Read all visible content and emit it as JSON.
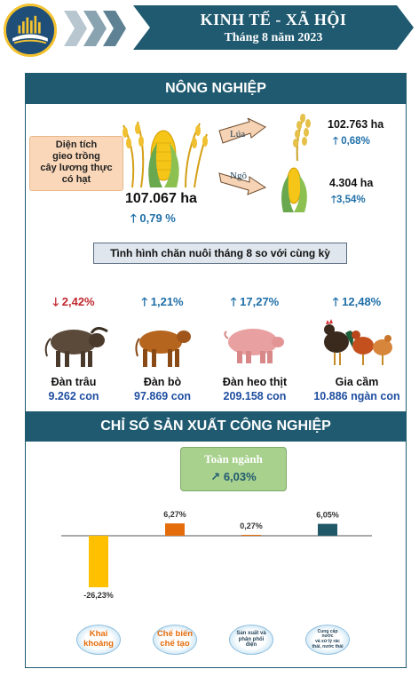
{
  "header": {
    "title": "KINH TẾ - XÃ HỘI",
    "subtitle": "Tháng 8 năm 2023"
  },
  "colors": {
    "primary": "#1f5a70",
    "up": "#1f6fa8",
    "down": "#c0282d",
    "accent_green": "#a9d18e"
  },
  "agriculture": {
    "section_title": "NÔNG NGHIỆP",
    "area_label": "Diện tích gieo trồng cây lương thực có hạt",
    "area_label_lines": [
      "Diện tích",
      "gieo trồng",
      "cây lương thực",
      "có hạt"
    ],
    "total_value": "107.067 ha",
    "total_change": "0,79 %",
    "crops": [
      {
        "name": "Lúa",
        "value": "102.763 ha",
        "change": "0,68%",
        "icon": "rice-icon"
      },
      {
        "name": "Ngô",
        "value": "4.304 ha",
        "change": "3,54%",
        "icon": "corn-icon"
      }
    ],
    "livestock_title": "Tình hình chăn nuôi tháng 8 so với cùng kỳ",
    "livestock": [
      {
        "name": "Đàn trâu",
        "count": "9.262 con",
        "change": "2,42%",
        "direction": "down",
        "icon": "buffalo-icon"
      },
      {
        "name": "Đàn bò",
        "count": "97.869 con",
        "change": "1,21%",
        "direction": "up",
        "icon": "cow-icon"
      },
      {
        "name": "Đàn heo thịt",
        "count": "209.158 con",
        "change": "17,27%",
        "direction": "up",
        "icon": "pig-icon"
      },
      {
        "name": "Gia cầm",
        "count": "10.886 ngàn con",
        "change": "12,48%",
        "direction": "up",
        "icon": "poultry-icon"
      }
    ]
  },
  "industry": {
    "section_title": "CHỈ SỐ SẢN XUẤT CÔNG NGHIỆP",
    "total_label": "Toàn ngành",
    "total_value": "6,03%"
  },
  "chart_data": {
    "type": "bar",
    "title": "",
    "xlabel": "",
    "ylabel": "",
    "categories": [
      "Khai khoáng",
      "Chế biến chế tạo",
      "Sản xuất và phân phối điện",
      "Cung cấp nước và xử lý rác thải, nước thải"
    ],
    "category_lines": [
      [
        "Khai",
        "khoáng"
      ],
      [
        "Chế biến",
        "chế tạo"
      ],
      [
        "Sản xuất và",
        "phân phối",
        "điện"
      ],
      [
        "Cung cấp",
        "nước",
        "và xử lý rác",
        "thải, nước thải"
      ]
    ],
    "values": [
      -26.23,
      6.27,
      0.27,
      6.05
    ],
    "value_labels": [
      "-26,23%",
      "6,27%",
      "0,27%",
      "6,05%"
    ],
    "bar_colors": [
      "#ffc000",
      "#e46c0a",
      "#e46c0a",
      "#215868"
    ],
    "label_colors": [
      "#e46c0a",
      "#e46c0a",
      "#1f3f55",
      "#1f3f55"
    ],
    "ylim": [
      -27,
      7
    ],
    "grid": false,
    "legend": "none"
  }
}
